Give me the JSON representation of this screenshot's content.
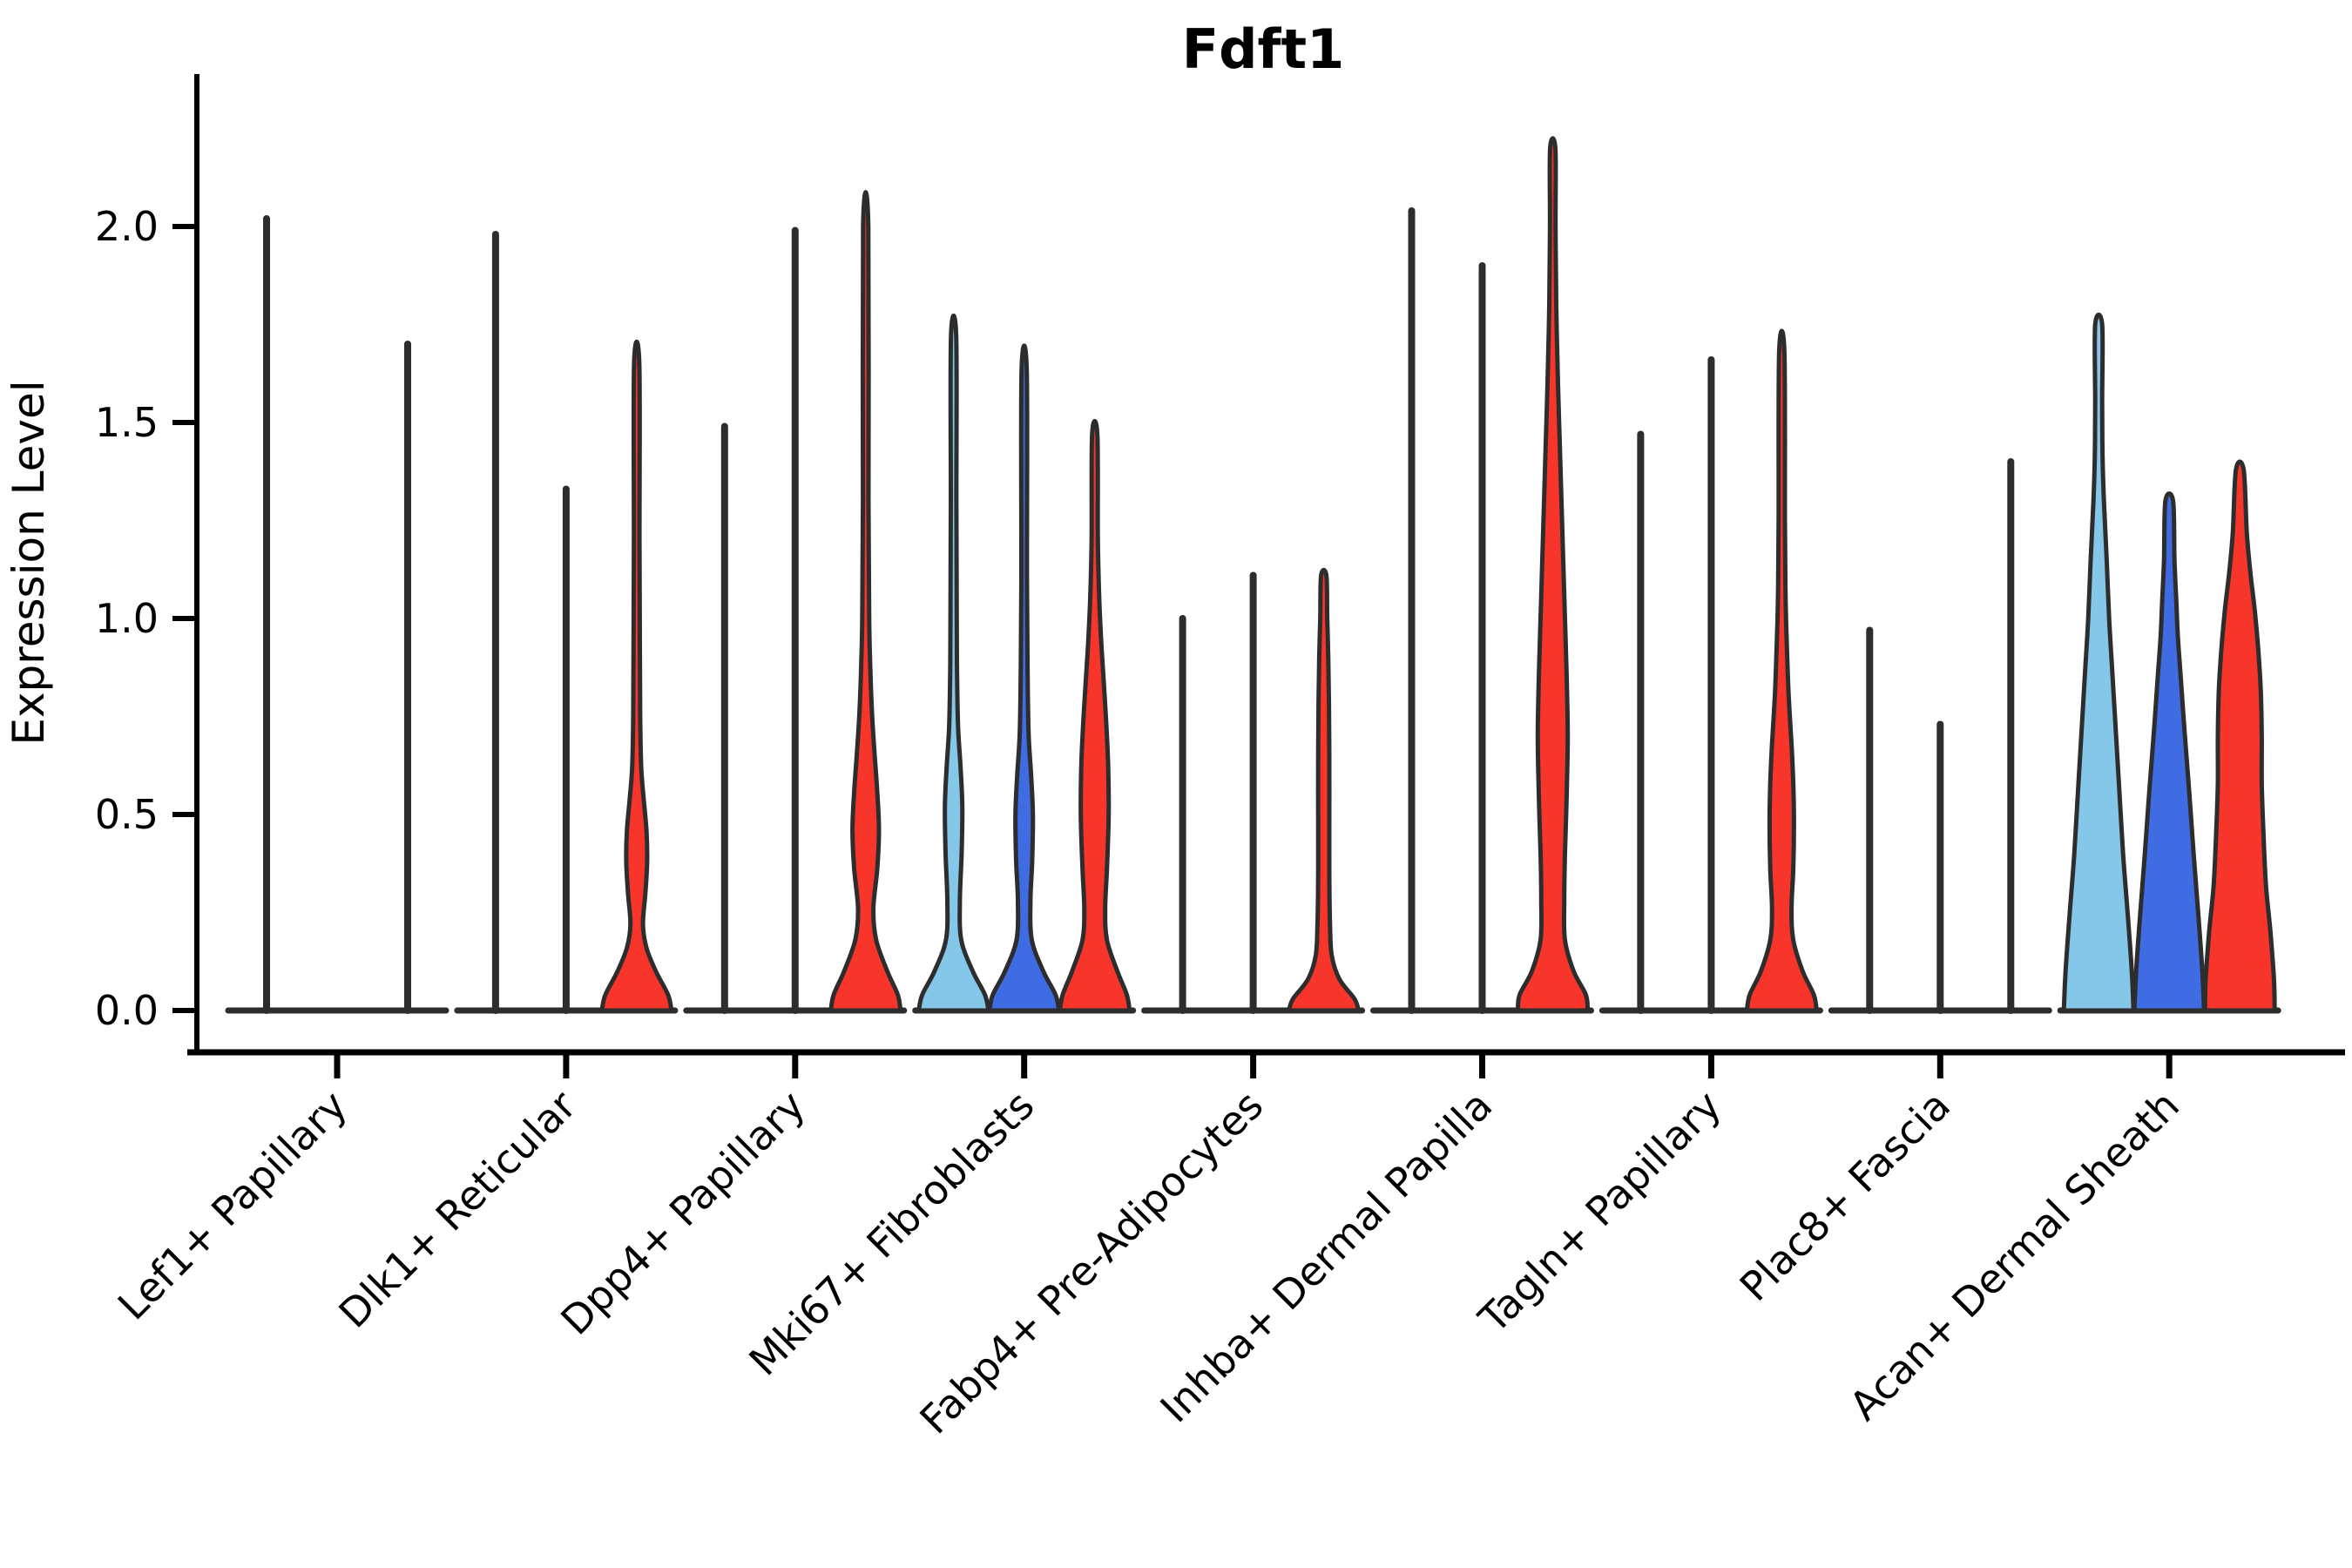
{
  "title": "Fdft1",
  "axes": {
    "ylabel": "Expression Level",
    "ytick_labels": [
      "0.0",
      "0.5",
      "1.0",
      "1.5",
      "2.0"
    ]
  },
  "colors": {
    "split_1_fill": "#85C7E9",
    "split_2_fill": "#3F6BE3",
    "split_3_fill": "#F7352B",
    "violin_outline": "#2D2D2D",
    "axis": "#000000",
    "background": "#FFFFFF"
  },
  "chart_data": {
    "type": "violin",
    "title": "Fdft1",
    "xlabel": "",
    "ylabel": "Expression Level",
    "grid": false,
    "legend_position": "none",
    "ylim": [
      0,
      2.39
    ],
    "yticks": [
      0.0,
      0.5,
      1.0,
      1.5,
      2.0
    ],
    "categories": [
      "Lef1+ Papillary",
      "Dlk1+ Reticular",
      "Dpp4+ Papillary",
      "Mki67+ Fibroblasts",
      "Fabp4+ Pre-Adipocytes",
      "Inhba+ Dermal Papilla",
      "Tagln+ Papillary",
      "Plac8+ Fascia",
      "Acan+ Dermal Sheath"
    ],
    "series": [
      {
        "name": "split-1",
        "color": "#85C7E9",
        "max_expression": [
          2.02,
          1.98,
          1.49,
          1.72,
          1.0,
          2.04,
          1.47,
          0.97,
          1.75
        ]
      },
      {
        "name": "split-2",
        "color": "#3F6BE3",
        "max_expression": [
          0.0,
          1.33,
          1.99,
          1.63,
          1.11,
          1.9,
          1.66,
          0.73,
          1.3
        ]
      },
      {
        "name": "split-3",
        "color": "#F7352B",
        "max_expression": [
          1.7,
          1.65,
          2.0,
          1.47,
          1.11,
          2.2,
          1.68,
          1.4,
          1.38
        ]
      }
    ],
    "violins": [
      {
        "category": "Lef1+ Papillary",
        "items": [
          {
            "series": 0,
            "max": 2.02,
            "body": null
          },
          {
            "series": 1,
            "max": 0.0,
            "body": null
          },
          {
            "series": 2,
            "max": 1.7,
            "body": null
          }
        ]
      },
      {
        "category": "Dlk1+ Reticular",
        "items": [
          {
            "series": 0,
            "max": 1.98,
            "body": null
          },
          {
            "series": 1,
            "max": 1.33,
            "body": null
          },
          {
            "series": 2,
            "max": 1.65,
            "body": [
              [
                0,
                1
              ],
              [
                0.04,
                0.9
              ],
              [
                0.1,
                0.55
              ],
              [
                0.16,
                0.28
              ],
              [
                0.22,
                0.18
              ],
              [
                0.3,
                0.25
              ],
              [
                0.38,
                0.3
              ],
              [
                0.46,
                0.28
              ],
              [
                0.54,
                0.2
              ],
              [
                0.62,
                0.13
              ],
              [
                0.75,
                0.1
              ],
              [
                0.95,
                0.09
              ],
              [
                1.2,
                0.08
              ],
              [
                1.65,
                0.075
              ]
            ]
          }
        ]
      },
      {
        "category": "Dpp4+ Papillary",
        "items": [
          {
            "series": 0,
            "max": 1.49,
            "body": null
          },
          {
            "series": 1,
            "max": 1.99,
            "body": null
          },
          {
            "series": 2,
            "max": 2.0,
            "body": [
              [
                0,
                1
              ],
              [
                0.04,
                0.92
              ],
              [
                0.1,
                0.62
              ],
              [
                0.18,
                0.3
              ],
              [
                0.26,
                0.22
              ],
              [
                0.36,
                0.33
              ],
              [
                0.46,
                0.38
              ],
              [
                0.56,
                0.33
              ],
              [
                0.66,
                0.25
              ],
              [
                0.76,
                0.18
              ],
              [
                0.88,
                0.13
              ],
              [
                1.0,
                0.1
              ],
              [
                1.3,
                0.08
              ],
              [
                2.0,
                0.075
              ]
            ]
          }
        ]
      },
      {
        "category": "Mki67+ Fibroblasts",
        "items": [
          {
            "series": 0,
            "max": 1.72,
            "body": [
              [
                0,
                1
              ],
              [
                0.04,
                0.9
              ],
              [
                0.1,
                0.55
              ],
              [
                0.18,
                0.22
              ],
              [
                0.28,
                0.18
              ],
              [
                0.4,
                0.23
              ],
              [
                0.52,
                0.25
              ],
              [
                0.62,
                0.2
              ],
              [
                0.72,
                0.13
              ],
              [
                0.85,
                0.1
              ],
              [
                1.0,
                0.09
              ],
              [
                1.3,
                0.08
              ],
              [
                1.72,
                0.075
              ]
            ]
          },
          {
            "series": 1,
            "max": 1.63,
            "body": [
              [
                0,
                1
              ],
              [
                0.04,
                0.9
              ],
              [
                0.1,
                0.55
              ],
              [
                0.18,
                0.22
              ],
              [
                0.28,
                0.18
              ],
              [
                0.38,
                0.23
              ],
              [
                0.5,
                0.25
              ],
              [
                0.6,
                0.2
              ],
              [
                0.7,
                0.13
              ],
              [
                0.85,
                0.1
              ],
              [
                1.1,
                0.08
              ],
              [
                1.63,
                0.075
              ]
            ]
          },
          {
            "series": 2,
            "max": 1.47,
            "body": [
              [
                0,
                1
              ],
              [
                0.04,
                0.92
              ],
              [
                0.1,
                0.65
              ],
              [
                0.18,
                0.35
              ],
              [
                0.26,
                0.3
              ],
              [
                0.36,
                0.35
              ],
              [
                0.5,
                0.4
              ],
              [
                0.64,
                0.38
              ],
              [
                0.78,
                0.3
              ],
              [
                0.92,
                0.2
              ],
              [
                1.05,
                0.13
              ],
              [
                1.2,
                0.09
              ],
              [
                1.47,
                0.075
              ]
            ]
          }
        ]
      },
      {
        "category": "Fabp4+ Pre-Adipocytes",
        "items": [
          {
            "series": 0,
            "max": 1.0,
            "body": null
          },
          {
            "series": 1,
            "max": 1.11,
            "body": null
          },
          {
            "series": 2,
            "max": 1.11,
            "body": [
              [
                0,
                1
              ],
              [
                0.03,
                0.88
              ],
              [
                0.08,
                0.45
              ],
              [
                0.14,
                0.23
              ],
              [
                0.22,
                0.18
              ],
              [
                0.35,
                0.16
              ],
              [
                0.5,
                0.16
              ],
              [
                0.65,
                0.16
              ],
              [
                0.78,
                0.15
              ],
              [
                0.9,
                0.13
              ],
              [
                1.0,
                0.1
              ],
              [
                1.11,
                0.075
              ]
            ]
          }
        ]
      },
      {
        "category": "Inhba+ Dermal Papilla",
        "items": [
          {
            "series": 0,
            "max": 2.04,
            "body": null
          },
          {
            "series": 1,
            "max": 1.9,
            "body": null
          },
          {
            "series": 2,
            "max": 2.2,
            "body": [
              [
                0,
                1
              ],
              [
                0.04,
                0.95
              ],
              [
                0.1,
                0.6
              ],
              [
                0.18,
                0.35
              ],
              [
                0.28,
                0.33
              ],
              [
                0.4,
                0.35
              ],
              [
                0.55,
                0.4
              ],
              [
                0.7,
                0.43
              ],
              [
                0.85,
                0.4
              ],
              [
                1.0,
                0.35
              ],
              [
                1.15,
                0.3
              ],
              [
                1.3,
                0.25
              ],
              [
                1.45,
                0.2
              ],
              [
                1.6,
                0.15
              ],
              [
                1.8,
                0.1
              ],
              [
                2.0,
                0.08
              ],
              [
                2.2,
                0.075
              ]
            ]
          }
        ]
      },
      {
        "category": "Tagln+ Papillary",
        "items": [
          {
            "series": 0,
            "max": 1.47,
            "body": null
          },
          {
            "series": 1,
            "max": 1.66,
            "body": null
          },
          {
            "series": 2,
            "max": 1.68,
            "body": [
              [
                0,
                1
              ],
              [
                0.04,
                0.92
              ],
              [
                0.1,
                0.6
              ],
              [
                0.18,
                0.33
              ],
              [
                0.26,
                0.28
              ],
              [
                0.36,
                0.33
              ],
              [
                0.48,
                0.35
              ],
              [
                0.58,
                0.33
              ],
              [
                0.68,
                0.28
              ],
              [
                0.8,
                0.2
              ],
              [
                0.92,
                0.15
              ],
              [
                1.05,
                0.11
              ],
              [
                1.25,
                0.09
              ],
              [
                1.68,
                0.075
              ]
            ]
          }
        ]
      },
      {
        "category": "Plac8+ Fascia",
        "items": [
          {
            "series": 0,
            "max": 0.97,
            "body": null
          },
          {
            "series": 1,
            "max": 0.73,
            "body": null
          },
          {
            "series": 2,
            "max": 1.4,
            "body": null
          }
        ]
      },
      {
        "category": "Acan+ Dermal Sheath",
        "items": [
          {
            "series": 0,
            "max": 1.75,
            "body": [
              [
                0,
                1
              ],
              [
                0.1,
                0.95
              ],
              [
                0.25,
                0.83
              ],
              [
                0.4,
                0.7
              ],
              [
                0.55,
                0.6
              ],
              [
                0.7,
                0.5
              ],
              [
                0.85,
                0.4
              ],
              [
                1.0,
                0.3
              ],
              [
                1.15,
                0.23
              ],
              [
                1.3,
                0.15
              ],
              [
                1.42,
                0.11
              ],
              [
                1.55,
                0.1
              ],
              [
                1.75,
                0.1
              ]
            ]
          },
          {
            "series": 1,
            "max": 1.3,
            "body": [
              [
                0,
                1
              ],
              [
                0.1,
                0.95
              ],
              [
                0.25,
                0.83
              ],
              [
                0.4,
                0.7
              ],
              [
                0.55,
                0.58
              ],
              [
                0.7,
                0.45
              ],
              [
                0.85,
                0.33
              ],
              [
                0.95,
                0.25
              ],
              [
                1.05,
                0.2
              ],
              [
                1.15,
                0.15
              ],
              [
                1.3,
                0.11
              ]
            ]
          },
          {
            "series": 2,
            "max": 1.38,
            "body": [
              [
                0,
                1
              ],
              [
                0.08,
                0.98
              ],
              [
                0.2,
                0.88
              ],
              [
                0.32,
                0.75
              ],
              [
                0.45,
                0.68
              ],
              [
                0.58,
                0.63
              ],
              [
                0.7,
                0.63
              ],
              [
                0.82,
                0.6
              ],
              [
                0.92,
                0.53
              ],
              [
                1.02,
                0.43
              ],
              [
                1.12,
                0.3
              ],
              [
                1.22,
                0.2
              ],
              [
                1.38,
                0.11
              ]
            ]
          }
        ]
      }
    ]
  }
}
